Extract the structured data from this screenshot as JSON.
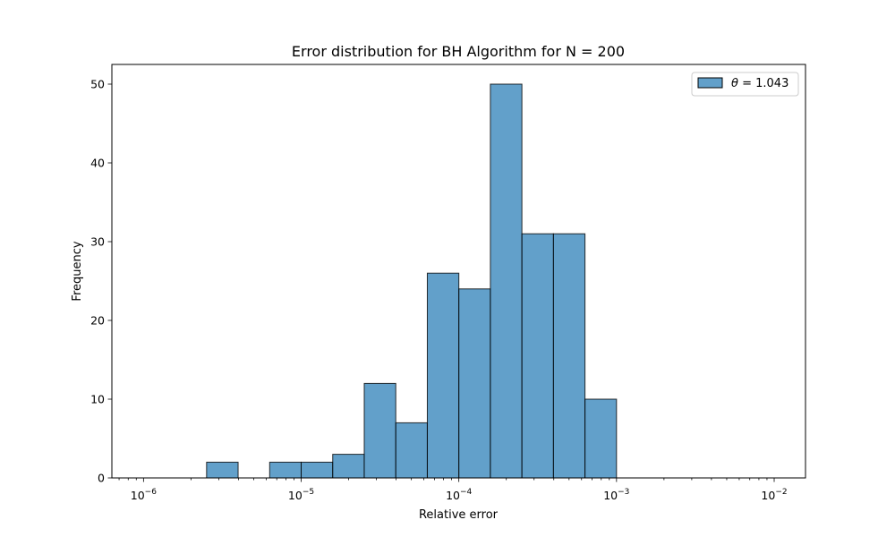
{
  "chart_data": {
    "type": "bar",
    "title": "Error distribution for BH Algorithm for N = 200",
    "xlabel": "Relative error",
    "ylabel": "Frequency",
    "x_scale": "log",
    "xlim": [
      6.3e-07,
      0.0158
    ],
    "ylim": [
      0,
      52.5
    ],
    "x_ticks": [
      {
        "value": 1e-06,
        "base": "10",
        "exp": "−6"
      },
      {
        "value": 1e-05,
        "base": "10",
        "exp": "−5"
      },
      {
        "value": 0.0001,
        "base": "10",
        "exp": "−4"
      },
      {
        "value": 0.001,
        "base": "10",
        "exp": "−3"
      },
      {
        "value": 0.01,
        "base": "10",
        "exp": "−2"
      }
    ],
    "y_ticks": [
      0,
      10,
      20,
      30,
      40,
      50
    ],
    "grid": false,
    "legend": {
      "placement": "top-right",
      "symbol": "θ",
      "text": " = 1.043"
    },
    "series": [
      {
        "color": "#1f77b4",
        "edge_color": "#000000",
        "bins": [
          {
            "x0": 1e-06,
            "x1": 1.585e-06,
            "count": 0
          },
          {
            "x0": 1.585e-06,
            "x1": 2.512e-06,
            "count": 0
          },
          {
            "x0": 2.512e-06,
            "x1": 3.981e-06,
            "count": 2
          },
          {
            "x0": 3.981e-06,
            "x1": 6.31e-06,
            "count": 0
          },
          {
            "x0": 6.31e-06,
            "x1": 1e-05,
            "count": 2
          },
          {
            "x0": 1e-05,
            "x1": 1.585e-05,
            "count": 2
          },
          {
            "x0": 1.585e-05,
            "x1": 2.512e-05,
            "count": 3
          },
          {
            "x0": 2.512e-05,
            "x1": 3.981e-05,
            "count": 12
          },
          {
            "x0": 3.981e-05,
            "x1": 6.31e-05,
            "count": 7
          },
          {
            "x0": 6.31e-05,
            "x1": 0.0001,
            "count": 26
          },
          {
            "x0": 0.0001,
            "x1": 0.0001585,
            "count": 24
          },
          {
            "x0": 0.0001585,
            "x1": 0.0002512,
            "count": 50
          },
          {
            "x0": 0.0002512,
            "x1": 0.0003981,
            "count": 31
          },
          {
            "x0": 0.0003981,
            "x1": 0.000631,
            "count": 31
          },
          {
            "x0": 0.000631,
            "x1": 0.001,
            "count": 10
          },
          {
            "x0": 0.001,
            "x1": 0.001585,
            "count": 0
          },
          {
            "x0": 0.001585,
            "x1": 0.002512,
            "count": 0
          },
          {
            "x0": 0.002512,
            "x1": 0.003981,
            "count": 0
          },
          {
            "x0": 0.003981,
            "x1": 0.00631,
            "count": 0
          },
          {
            "x0": 0.00631,
            "x1": 0.01,
            "count": 0
          }
        ]
      }
    ]
  }
}
